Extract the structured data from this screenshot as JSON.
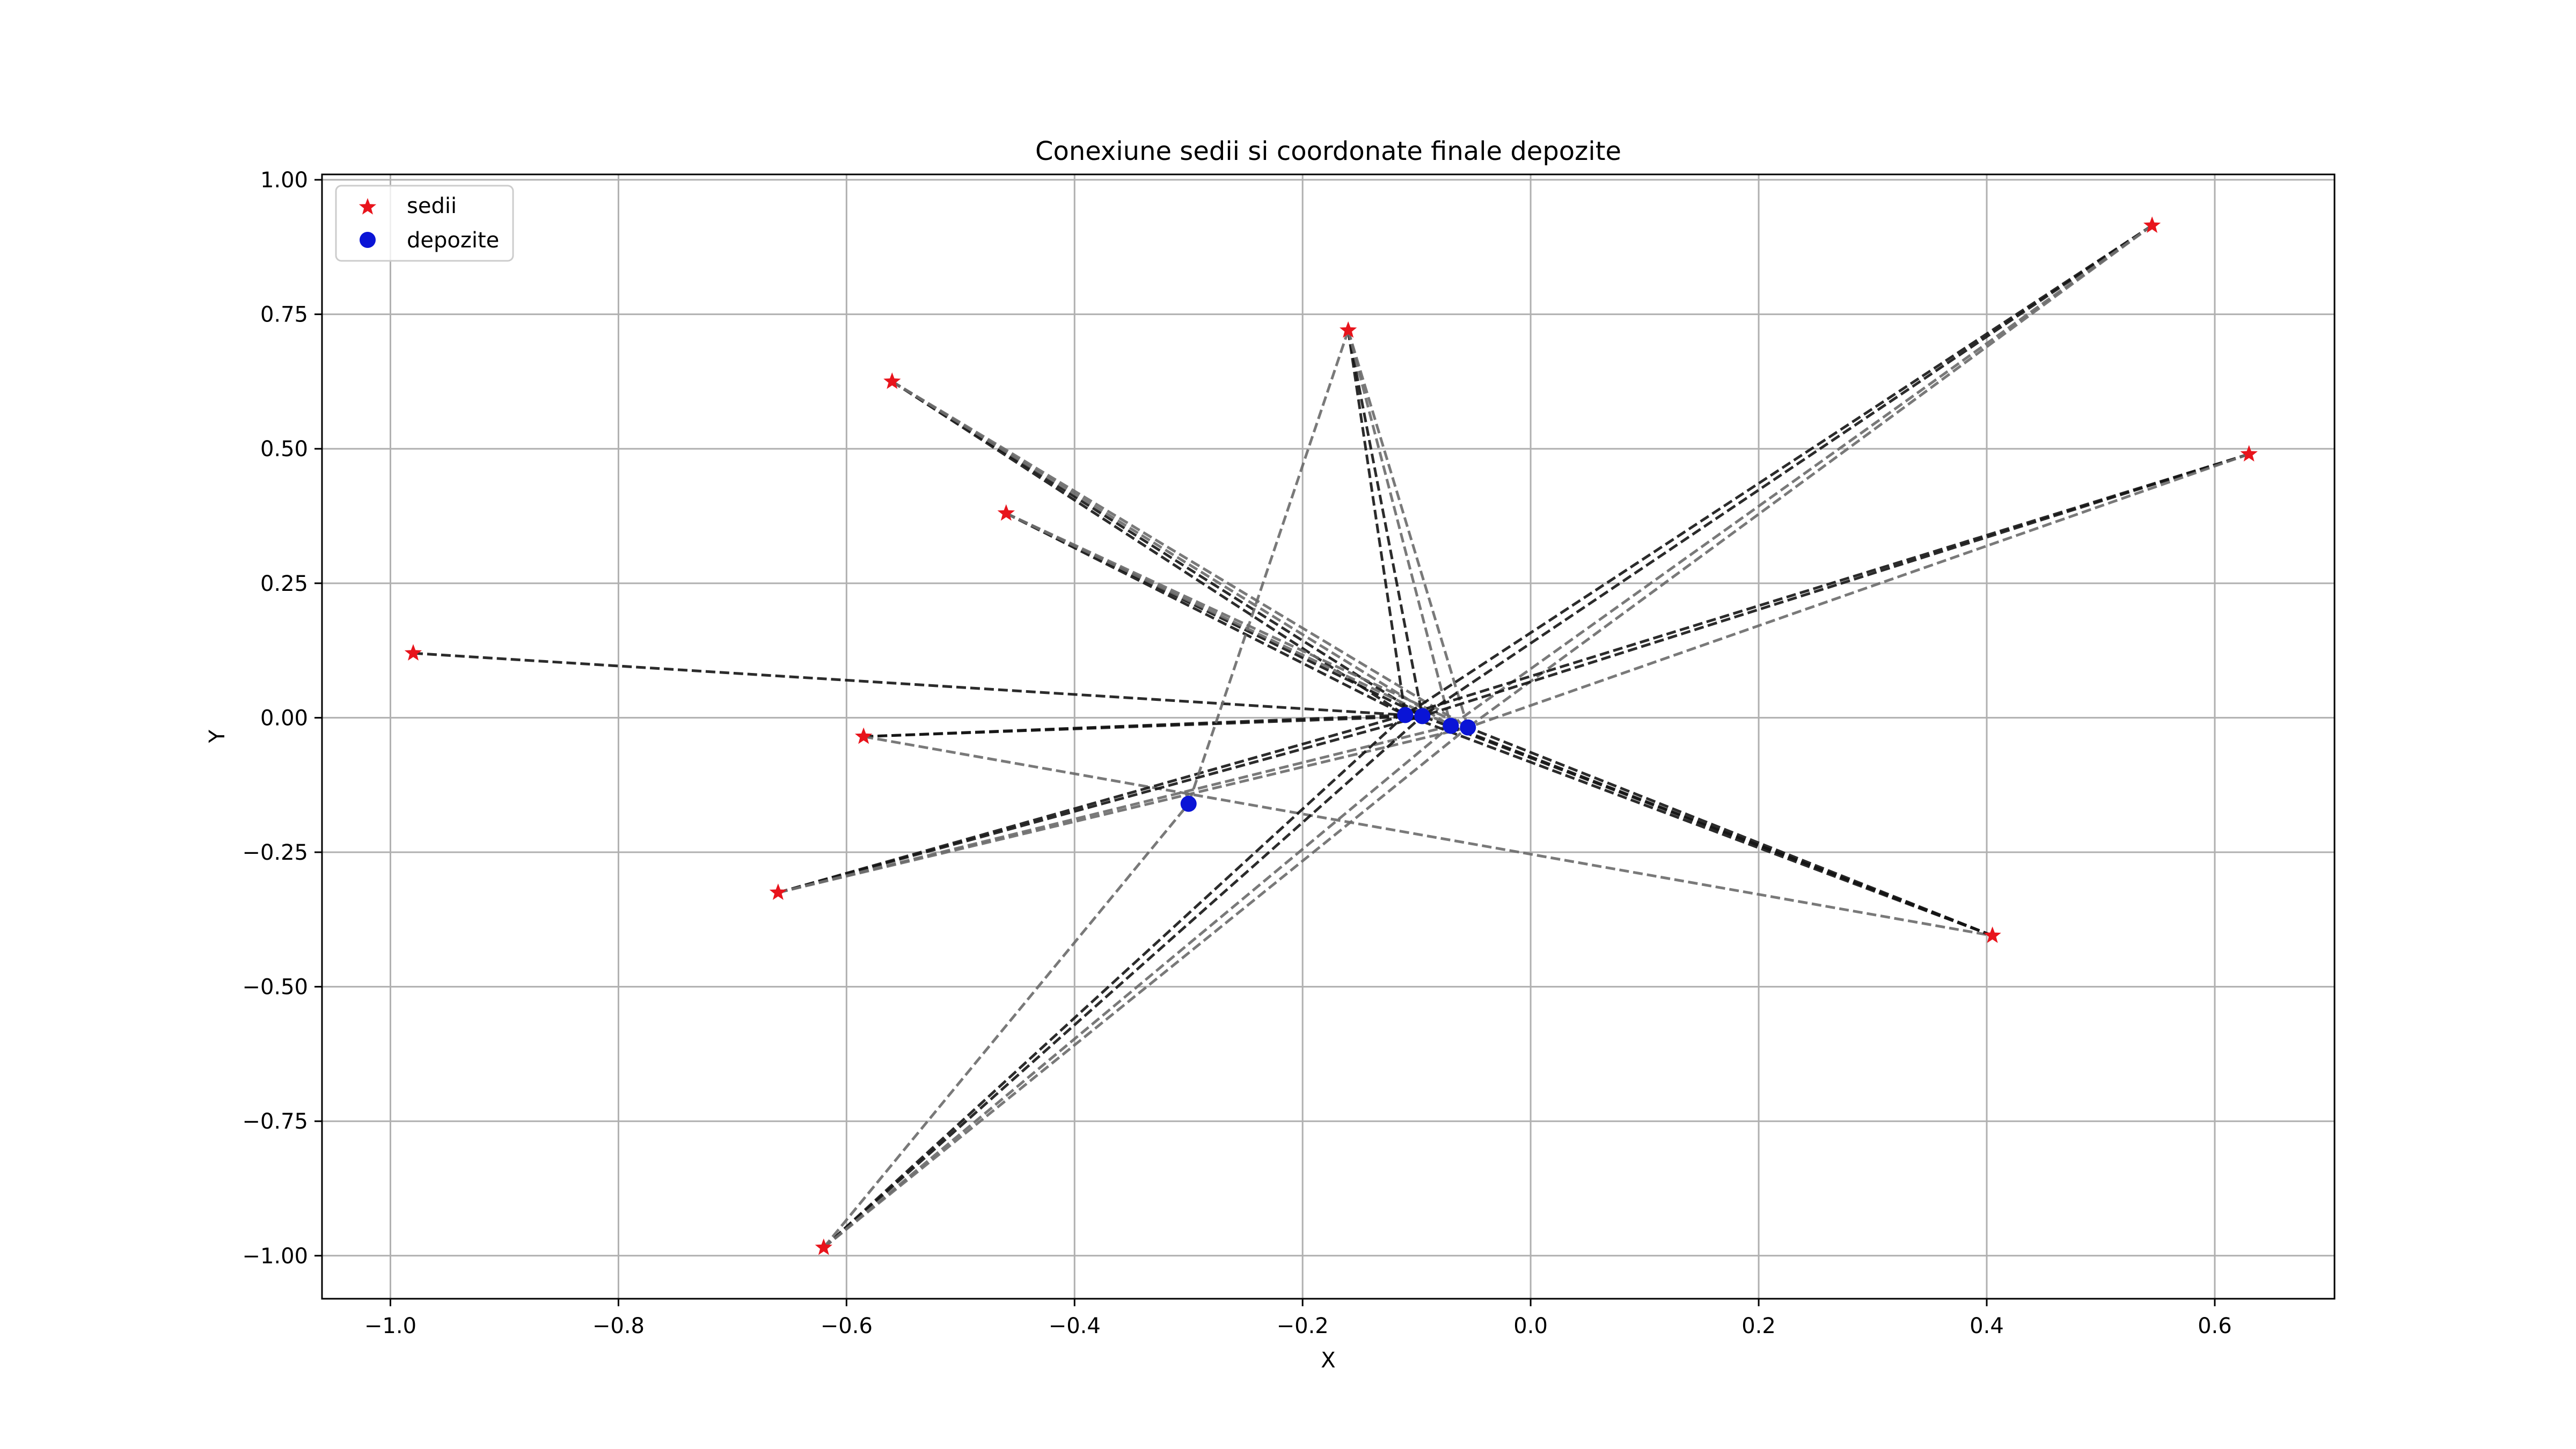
{
  "chart_data": {
    "type": "scatter",
    "title": "Conexiune sedii si coordonate finale depozite",
    "xlabel": "X",
    "ylabel": "Y",
    "xlim": [
      -1.06,
      0.705
    ],
    "ylim": [
      -1.08,
      1.01
    ],
    "grid": true,
    "legend_position": "top-left",
    "x_ticks": [
      -1.0,
      -0.8,
      -0.6,
      -0.4,
      -0.2,
      0.0,
      0.2,
      0.4,
      0.6
    ],
    "x_tick_labels": [
      "−1.0",
      "−0.8",
      "−0.6",
      "−0.4",
      "−0.2",
      "0.0",
      "0.2",
      "0.4",
      "0.6"
    ],
    "y_ticks": [
      1.0,
      0.75,
      0.5,
      0.25,
      0.0,
      -0.25,
      -0.5,
      -0.75,
      -1.0
    ],
    "y_tick_labels": [
      "1.00",
      "0.75",
      "0.50",
      "0.25",
      "0.00",
      "−0.25",
      "−0.50",
      "−0.75",
      "−1.00"
    ],
    "colors": {
      "sedii": "#e8141c",
      "depozite": "#0a14d6",
      "connection_dark": "#141414",
      "connection_light": "#6a6a6a",
      "grid": "#b0b0b0"
    },
    "series": [
      {
        "name": "sedii",
        "marker": "star",
        "points": [
          {
            "x": -0.98,
            "y": 0.12
          },
          {
            "x": -0.56,
            "y": 0.625
          },
          {
            "x": -0.46,
            "y": 0.38
          },
          {
            "x": -0.585,
            "y": -0.035
          },
          {
            "x": -0.66,
            "y": -0.325
          },
          {
            "x": -0.62,
            "y": -0.985
          },
          {
            "x": -0.16,
            "y": 0.72
          },
          {
            "x": 0.545,
            "y": 0.915
          },
          {
            "x": 0.63,
            "y": 0.49
          },
          {
            "x": 0.405,
            "y": -0.405
          }
        ]
      },
      {
        "name": "depozite",
        "marker": "circle",
        "points": [
          {
            "x": -0.11,
            "y": 0.005
          },
          {
            "x": -0.095,
            "y": 0.003
          },
          {
            "x": -0.07,
            "y": -0.015
          },
          {
            "x": -0.055,
            "y": -0.018
          },
          {
            "x": -0.3,
            "y": -0.16
          }
        ]
      }
    ],
    "connections": [
      {
        "from": {
          "x": -0.98,
          "y": 0.12
        },
        "to": {
          "x": -0.11,
          "y": 0.005
        },
        "shade": "dark"
      },
      {
        "from": {
          "x": -0.56,
          "y": 0.625
        },
        "to": {
          "x": -0.11,
          "y": 0.005
        },
        "shade": "dark"
      },
      {
        "from": {
          "x": -0.56,
          "y": 0.625
        },
        "to": {
          "x": -0.095,
          "y": 0.003
        },
        "shade": "dark"
      },
      {
        "from": {
          "x": -0.56,
          "y": 0.625
        },
        "to": {
          "x": -0.07,
          "y": -0.015
        },
        "shade": "light"
      },
      {
        "from": {
          "x": -0.56,
          "y": 0.625
        },
        "to": {
          "x": -0.055,
          "y": -0.018
        },
        "shade": "light"
      },
      {
        "from": {
          "x": -0.46,
          "y": 0.38
        },
        "to": {
          "x": -0.11,
          "y": 0.005
        },
        "shade": "dark"
      },
      {
        "from": {
          "x": -0.46,
          "y": 0.38
        },
        "to": {
          "x": -0.095,
          "y": 0.003
        },
        "shade": "dark"
      },
      {
        "from": {
          "x": -0.46,
          "y": 0.38
        },
        "to": {
          "x": -0.07,
          "y": -0.015
        },
        "shade": "light"
      },
      {
        "from": {
          "x": -0.46,
          "y": 0.38
        },
        "to": {
          "x": -0.055,
          "y": -0.018
        },
        "shade": "light"
      },
      {
        "from": {
          "x": -0.585,
          "y": -0.035
        },
        "to": {
          "x": -0.11,
          "y": 0.005
        },
        "shade": "dark"
      },
      {
        "from": {
          "x": -0.585,
          "y": -0.035
        },
        "to": {
          "x": -0.095,
          "y": 0.003
        },
        "shade": "dark"
      },
      {
        "from": {
          "x": -0.585,
          "y": -0.035
        },
        "to": {
          "x": 0.405,
          "y": -0.405
        },
        "shade": "light"
      },
      {
        "from": {
          "x": -0.66,
          "y": -0.325
        },
        "to": {
          "x": -0.11,
          "y": 0.005
        },
        "shade": "dark"
      },
      {
        "from": {
          "x": -0.66,
          "y": -0.325
        },
        "to": {
          "x": -0.095,
          "y": 0.003
        },
        "shade": "dark"
      },
      {
        "from": {
          "x": -0.66,
          "y": -0.325
        },
        "to": {
          "x": -0.07,
          "y": -0.015
        },
        "shade": "light"
      },
      {
        "from": {
          "x": -0.66,
          "y": -0.325
        },
        "to": {
          "x": -0.055,
          "y": -0.018
        },
        "shade": "light"
      },
      {
        "from": {
          "x": -0.62,
          "y": -0.985
        },
        "to": {
          "x": -0.11,
          "y": 0.005
        },
        "shade": "dark"
      },
      {
        "from": {
          "x": -0.62,
          "y": -0.985
        },
        "to": {
          "x": -0.095,
          "y": 0.003
        },
        "shade": "dark"
      },
      {
        "from": {
          "x": -0.62,
          "y": -0.985
        },
        "to": {
          "x": -0.07,
          "y": -0.015
        },
        "shade": "light"
      },
      {
        "from": {
          "x": -0.62,
          "y": -0.985
        },
        "to": {
          "x": -0.055,
          "y": -0.018
        },
        "shade": "light"
      },
      {
        "from": {
          "x": -0.62,
          "y": -0.985
        },
        "to": {
          "x": -0.3,
          "y": -0.16
        },
        "shade": "light"
      },
      {
        "from": {
          "x": -0.16,
          "y": 0.72
        },
        "to": {
          "x": -0.11,
          "y": 0.005
        },
        "shade": "dark"
      },
      {
        "from": {
          "x": -0.16,
          "y": 0.72
        },
        "to": {
          "x": -0.095,
          "y": 0.003
        },
        "shade": "dark"
      },
      {
        "from": {
          "x": -0.16,
          "y": 0.72
        },
        "to": {
          "x": -0.07,
          "y": -0.015
        },
        "shade": "light"
      },
      {
        "from": {
          "x": -0.16,
          "y": 0.72
        },
        "to": {
          "x": -0.055,
          "y": -0.018
        },
        "shade": "light"
      },
      {
        "from": {
          "x": -0.16,
          "y": 0.72
        },
        "to": {
          "x": -0.3,
          "y": -0.16
        },
        "shade": "light"
      },
      {
        "from": {
          "x": 0.545,
          "y": 0.915
        },
        "to": {
          "x": -0.11,
          "y": 0.005
        },
        "shade": "dark"
      },
      {
        "from": {
          "x": 0.545,
          "y": 0.915
        },
        "to": {
          "x": -0.095,
          "y": 0.003
        },
        "shade": "dark"
      },
      {
        "from": {
          "x": 0.545,
          "y": 0.915
        },
        "to": {
          "x": -0.07,
          "y": -0.015
        },
        "shade": "light"
      },
      {
        "from": {
          "x": 0.545,
          "y": 0.915
        },
        "to": {
          "x": -0.055,
          "y": -0.018
        },
        "shade": "light"
      },
      {
        "from": {
          "x": 0.63,
          "y": 0.49
        },
        "to": {
          "x": -0.11,
          "y": 0.005
        },
        "shade": "dark"
      },
      {
        "from": {
          "x": 0.63,
          "y": 0.49
        },
        "to": {
          "x": -0.095,
          "y": 0.003
        },
        "shade": "dark"
      },
      {
        "from": {
          "x": 0.63,
          "y": 0.49
        },
        "to": {
          "x": -0.055,
          "y": -0.018
        },
        "shade": "light"
      },
      {
        "from": {
          "x": 0.405,
          "y": -0.405
        },
        "to": {
          "x": -0.11,
          "y": 0.005
        },
        "shade": "dark"
      },
      {
        "from": {
          "x": 0.405,
          "y": -0.405
        },
        "to": {
          "x": -0.095,
          "y": 0.003
        },
        "shade": "dark"
      },
      {
        "from": {
          "x": 0.405,
          "y": -0.405
        },
        "to": {
          "x": -0.07,
          "y": -0.015
        },
        "shade": "dark"
      },
      {
        "from": {
          "x": 0.405,
          "y": -0.405
        },
        "to": {
          "x": -0.055,
          "y": -0.018
        },
        "shade": "dark"
      }
    ]
  }
}
